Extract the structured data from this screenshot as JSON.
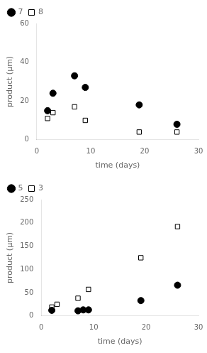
{
  "chart_data": [
    {
      "type": "scatter",
      "xlabel": "time (days)",
      "ylabel": "product (μm)",
      "xlim": [
        0,
        30
      ],
      "xticks": [
        0,
        10,
        20,
        30
      ],
      "ylim": [
        0,
        60
      ],
      "yticks": [
        0,
        20,
        40,
        60
      ],
      "grid": false,
      "legend": "upper left",
      "series": [
        {
          "name": "7",
          "color": "#000000",
          "marker": "circle",
          "x": [
            2,
            3,
            7,
            9,
            19,
            26
          ],
          "values": [
            15,
            24,
            33,
            27,
            18,
            8
          ]
        },
        {
          "name": "8",
          "color": "#ffffff",
          "marker": "square",
          "x": [
            2,
            3,
            7,
            9,
            19,
            26
          ],
          "values": [
            11,
            14,
            17,
            10,
            4,
            4
          ]
        }
      ]
    },
    {
      "type": "scatter",
      "xlabel": "time (days)",
      "ylabel": "product (μm)",
      "xlim": [
        0,
        30
      ],
      "xticks": [
        0,
        10,
        20,
        30
      ],
      "ylim": [
        0,
        250
      ],
      "yticks": [
        0,
        50,
        100,
        150,
        200,
        250
      ],
      "grid": false,
      "legend": "upper left",
      "series": [
        {
          "name": "5",
          "color": "#000000",
          "marker": "circle",
          "x": [
            2,
            7,
            8,
            9,
            19,
            26
          ],
          "values": [
            12,
            11,
            13,
            13,
            33,
            66
          ]
        },
        {
          "name": "3",
          "color": "#ffffff",
          "marker": "square",
          "x": [
            2,
            3,
            7,
            9,
            19,
            26
          ],
          "values": [
            19,
            25,
            38,
            57,
            125,
            192
          ]
        }
      ]
    }
  ]
}
